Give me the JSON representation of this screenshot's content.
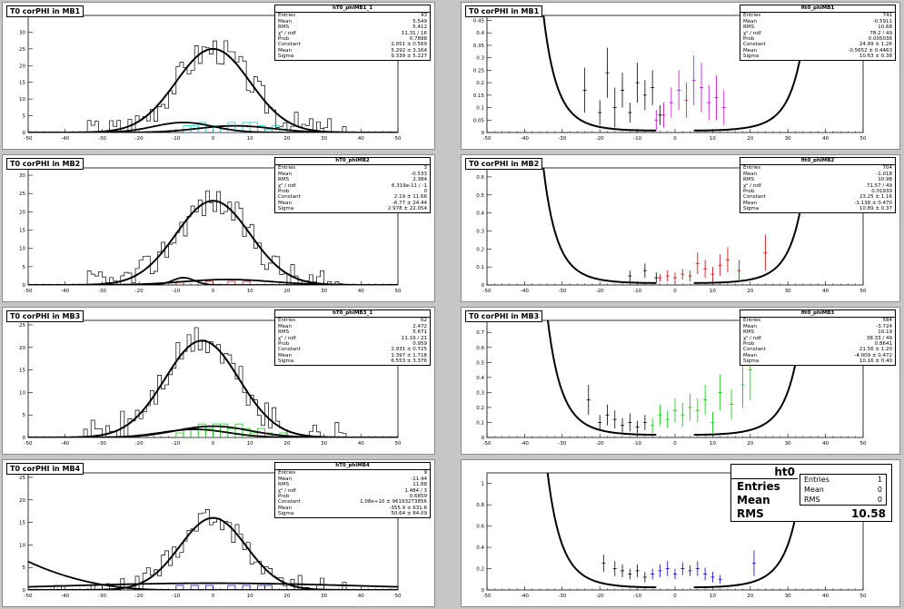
{
  "pads": [
    {
      "id": "l1",
      "title": "T0 corPHI in MB1",
      "xlim": [
        -50,
        50
      ],
      "ylim": [
        0,
        35
      ],
      "yticks": [
        0,
        5,
        10,
        15,
        20,
        25,
        30
      ],
      "stats": {
        "name": "hT0_phiMB1_1",
        "rows": [
          [
            "Entries",
            "43"
          ],
          [
            "Mean",
            "5.549"
          ],
          [
            "RMS",
            "5.412"
          ],
          [
            "χ² / ndf",
            "11.31 / 16"
          ],
          [
            "Prob",
            "0.7898"
          ],
          [
            "Constant",
            "2.051 ± 0.569"
          ],
          [
            "Mean",
            "5.292 ± 3.164"
          ],
          [
            "Sigma",
            "9.339 ± 5.227"
          ]
        ]
      },
      "gauss": {
        "c": 25,
        "m": 0,
        "s": 10
      },
      "small": [
        {
          "c": 3,
          "m": -8,
          "s": 8
        },
        {
          "c": 2,
          "m": 6,
          "s": 10
        }
      ],
      "color": "#00c8c8",
      "colored": [
        [
          -8,
          2
        ],
        [
          -6,
          2
        ],
        [
          -4,
          3
        ],
        [
          0,
          2
        ],
        [
          2,
          1
        ],
        [
          4,
          3
        ],
        [
          6,
          2
        ],
        [
          8,
          3
        ],
        [
          10,
          3
        ],
        [
          12,
          2
        ],
        [
          14,
          1
        ],
        [
          16,
          2
        ],
        [
          18,
          1
        ]
      ]
    },
    {
      "id": "r1",
      "title": "T0 corPHI in MB1",
      "xlim": [
        -50,
        50
      ],
      "ylim": [
        0,
        0.47
      ],
      "yticks": [
        0,
        0.05,
        0.1,
        0.15,
        0.2,
        0.25,
        0.3,
        0.35,
        0.4,
        0.45
      ],
      "stats": {
        "name": "fit0_phiMB1",
        "rows": [
          [
            "Entries",
            "741"
          ],
          [
            "Mean",
            "-0.5911"
          ],
          [
            "RMS",
            "10.68"
          ],
          [
            "χ² / ndf",
            "78.2 / 49"
          ],
          [
            "Prob",
            "0.005036"
          ],
          [
            "Constant",
            "24.99 ± 1.26"
          ],
          [
            "Mean",
            "-0.5652 ± 0.4463"
          ],
          [
            "Sigma",
            "10.63 ± 0.38"
          ]
        ]
      },
      "curveScale": 0.008,
      "color": "#c800c8",
      "black": [
        [
          -24,
          0.17,
          0.09
        ],
        [
          -20,
          0.08,
          0.05
        ],
        [
          -18,
          0.24,
          0.1
        ],
        [
          -16,
          0.1,
          0.08
        ],
        [
          -14,
          0.17,
          0.07
        ],
        [
          -12,
          0.08,
          0.04
        ],
        [
          -10,
          0.2,
          0.08
        ],
        [
          -8,
          0.15,
          0.06
        ],
        [
          -6,
          0.18,
          0.07
        ],
        [
          -4,
          0.07,
          0.04
        ]
      ],
      "colored": [
        [
          -5,
          0.05,
          0.04
        ],
        [
          -3,
          0.07,
          0.05
        ],
        [
          -1,
          0.12,
          0.06
        ],
        [
          1,
          0.17,
          0.08
        ],
        [
          3,
          0.13,
          0.07
        ],
        [
          5,
          0.21,
          0.1
        ],
        [
          7,
          0.18,
          0.1
        ],
        [
          9,
          0.12,
          0.07
        ],
        [
          11,
          0.14,
          0.09
        ],
        [
          13,
          0.1,
          0.07
        ]
      ]
    },
    {
      "id": "l2",
      "title": "T0 corPHI in MB2",
      "xlim": [
        -50,
        50
      ],
      "ylim": [
        0,
        32
      ],
      "yticks": [
        0,
        5,
        10,
        15,
        20,
        25,
        30
      ],
      "stats": {
        "name": "hT0_phiMB2",
        "rows": [
          [
            "Entries",
            "3"
          ],
          [
            "Mean",
            "-0.533"
          ],
          [
            "RMS",
            "2.384"
          ],
          [
            "χ² / ndf",
            "6.319e-11 / -1"
          ],
          [
            "Prob",
            "0"
          ],
          [
            "Constant",
            "2.19 ± 11.66"
          ],
          [
            "Mean",
            "-6.77 ± 24.44"
          ],
          [
            "Sigma",
            "2.978 ± 22.054"
          ]
        ]
      },
      "gauss": {
        "c": 23,
        "m": 0,
        "s": 10
      },
      "small": [
        {
          "c": 2,
          "m": -8,
          "s": 3
        },
        {
          "c": 1.5,
          "m": 4,
          "s": 12
        }
      ],
      "color": "#c80000",
      "colored": [
        [
          -10,
          1
        ],
        [
          -2,
          1
        ],
        [
          4,
          1
        ],
        [
          8,
          1
        ]
      ]
    },
    {
      "id": "r2",
      "title": "T0 corPHI in MB2",
      "xlim": [
        -50,
        50
      ],
      "ylim": [
        0,
        0.65
      ],
      "yticks": [
        0,
        0.1,
        0.2,
        0.3,
        0.4,
        0.5,
        0.6
      ],
      "stats": {
        "name": "fit0_phiMB2",
        "rows": [
          [
            "Entries",
            "704"
          ],
          [
            "Mean",
            "-1.018"
          ],
          [
            "RMS",
            "10.98"
          ],
          [
            "χ² / ndf",
            "71.57 / 49"
          ],
          [
            "Prob",
            "0.01939"
          ],
          [
            "Constant",
            "23.25 ± 1.16"
          ],
          [
            "Mean",
            "-1.138 ± 0.470"
          ],
          [
            "Sigma",
            "10.89 ± 0.37"
          ]
        ]
      },
      "curveScale": 0.011,
      "color": "#c80000",
      "black": [
        [
          -12,
          0.05,
          0.03
        ],
        [
          -8,
          0.08,
          0.04
        ],
        [
          -5,
          0.04,
          0.03
        ]
      ],
      "colored": [
        [
          -4,
          0.04,
          0.02
        ],
        [
          -2,
          0.05,
          0.03
        ],
        [
          0,
          0.04,
          0.03
        ],
        [
          2,
          0.06,
          0.03
        ],
        [
          4,
          0.05,
          0.03
        ],
        [
          6,
          0.12,
          0.06
        ],
        [
          8,
          0.09,
          0.05
        ],
        [
          10,
          0.06,
          0.04
        ],
        [
          12,
          0.11,
          0.06
        ],
        [
          14,
          0.14,
          0.07
        ],
        [
          17,
          0.08,
          0.06
        ],
        [
          24,
          0.18,
          0.1
        ]
      ]
    },
    {
      "id": "l3",
      "title": "T0 corPHI in MB3",
      "xlim": [
        -50,
        50
      ],
      "ylim": [
        0,
        26
      ],
      "yticks": [
        0,
        5,
        10,
        15,
        20,
        25
      ],
      "stats": {
        "name": "hT0_phiMB3_1",
        "rows": [
          [
            "Entries",
            "62"
          ],
          [
            "Mean",
            "2.472"
          ],
          [
            "RMS",
            "5.671"
          ],
          [
            "χ² / ndf",
            "11.19 / 21"
          ],
          [
            "Prob",
            "0.959"
          ],
          [
            "Constant",
            "2.931 ± 0.725"
          ],
          [
            "Mean",
            "1.397 ± 1.718"
          ],
          [
            "Sigma",
            "6.553 ± 3.376"
          ]
        ]
      },
      "gauss": {
        "c": 21.5,
        "m": -3,
        "s": 10
      },
      "small": [
        {
          "c": 2.5,
          "m": 0,
          "s": 10
        },
        {
          "c": 1.8,
          "m": -5,
          "s": 9
        }
      ],
      "color": "#00c800",
      "colored": [
        [
          -10,
          1
        ],
        [
          -8,
          2
        ],
        [
          -6,
          2
        ],
        [
          -4,
          3
        ],
        [
          -2,
          2
        ],
        [
          0,
          3
        ],
        [
          2,
          3
        ],
        [
          4,
          2
        ],
        [
          6,
          3
        ],
        [
          8,
          2
        ],
        [
          10,
          1
        ],
        [
          12,
          2
        ],
        [
          14,
          1
        ],
        [
          18,
          1
        ]
      ]
    },
    {
      "id": "r3",
      "title": "T0 corPHI in MB3",
      "xlim": [
        -50,
        50
      ],
      "ylim": [
        0,
        0.78
      ],
      "yticks": [
        0,
        0.1,
        0.2,
        0.3,
        0.4,
        0.5,
        0.6,
        0.7
      ],
      "stats": {
        "name": "fit0_phiMB3",
        "rows": [
          [
            "Entries",
            "584"
          ],
          [
            "Mean",
            "-3.724"
          ],
          [
            "RMS",
            "10.19"
          ],
          [
            "χ² / ndf",
            "38.33 / 49"
          ],
          [
            "Prob",
            "0.8641"
          ],
          [
            "Constant",
            "21.56 ± 1.20"
          ],
          [
            "Mean",
            "-4.009 ± 0.472"
          ],
          [
            "Sigma",
            "10.16 ± 0.40"
          ]
        ]
      },
      "curveScale": 0.018,
      "color": "#00c800",
      "black": [
        [
          -23,
          0.25,
          0.1
        ],
        [
          -20,
          0.1,
          0.05
        ],
        [
          -18,
          0.15,
          0.07
        ],
        [
          -16,
          0.12,
          0.06
        ],
        [
          -14,
          0.08,
          0.05
        ],
        [
          -12,
          0.1,
          0.06
        ],
        [
          -10,
          0.07,
          0.04
        ],
        [
          -8,
          0.1,
          0.05
        ]
      ],
      "colored": [
        [
          -6,
          0.08,
          0.05
        ],
        [
          -4,
          0.15,
          0.07
        ],
        [
          -2,
          0.12,
          0.06
        ],
        [
          0,
          0.18,
          0.08
        ],
        [
          2,
          0.15,
          0.08
        ],
        [
          4,
          0.2,
          0.09
        ],
        [
          6,
          0.18,
          0.08
        ],
        [
          8,
          0.25,
          0.1
        ],
        [
          10,
          0.1,
          0.07
        ],
        [
          12,
          0.3,
          0.12
        ],
        [
          15,
          0.22,
          0.1
        ],
        [
          18,
          0.35,
          0.15
        ],
        [
          20,
          0.45,
          0.2
        ]
      ]
    },
    {
      "id": "l4",
      "title": "T0 corPHI in MB4",
      "xlim": [
        -50,
        50
      ],
      "ylim": [
        0,
        26
      ],
      "yticks": [
        0,
        5,
        10,
        15,
        20,
        25
      ],
      "stats": {
        "name": "hT0_phiMB4",
        "rows": [
          [
            "Entries",
            "9"
          ],
          [
            "Mean",
            "-11.44"
          ],
          [
            "RMS",
            "11.88"
          ],
          [
            "χ² / ndf",
            "1.484 / 3"
          ],
          [
            "Prob",
            "0.6859"
          ],
          [
            "Constant",
            "1.08e+10 ± 96193273856"
          ],
          [
            "Mean",
            "-355.9 ± 631.6"
          ],
          [
            "Sigma",
            "50.64 ± 84.09"
          ]
        ]
      },
      "gauss": {
        "c": 16,
        "m": 0,
        "s": 9
      },
      "falling": true,
      "small": [
        {
          "c": 1.5,
          "m": 0,
          "s": 40
        }
      ],
      "color": "#0000c8",
      "colored": [
        [
          -10,
          1
        ],
        [
          -6,
          1
        ],
        [
          -2,
          1
        ],
        [
          4,
          1
        ],
        [
          8,
          1
        ],
        [
          12,
          1
        ],
        [
          14,
          1
        ]
      ]
    },
    {
      "id": "r4",
      "title": "",
      "xlim": [
        -50,
        50
      ],
      "ylim": [
        0,
        1.1
      ],
      "yticks": [
        0,
        0.2,
        0.4,
        0.6,
        0.8,
        1
      ],
      "curveScale": 0.025,
      "color": "#0000c8",
      "black": [
        [
          -19,
          0.25,
          0.08
        ],
        [
          -16,
          0.2,
          0.07
        ],
        [
          -14,
          0.18,
          0.06
        ],
        [
          -12,
          0.15,
          0.05
        ],
        [
          -10,
          0.18,
          0.06
        ],
        [
          -8,
          0.12,
          0.05
        ]
      ],
      "colored": [
        [
          -6,
          0.15,
          0.05
        ],
        [
          -4,
          0.18,
          0.06
        ],
        [
          -2,
          0.2,
          0.07
        ],
        [
          0,
          0.15,
          0.05
        ],
        [
          2,
          0.2,
          0.06
        ],
        [
          4,
          0.18,
          0.05
        ],
        [
          6,
          0.2,
          0.07
        ],
        [
          8,
          0.15,
          0.06
        ],
        [
          10,
          0.12,
          0.05
        ],
        [
          12,
          0.1,
          0.04
        ],
        [
          21,
          0.25,
          0.12
        ]
      ]
    }
  ],
  "ht0": {
    "name": "ht0",
    "rows": [
      [
        "Entries",
        "1"
      ],
      [
        "Mean",
        "0"
      ],
      [
        "RMS",
        "0"
      ]
    ],
    "big": [
      [
        "Entries",
        ""
      ],
      [
        "Mean",
        ""
      ],
      [
        "RMS",
        "10.58"
      ]
    ]
  },
  "chart_data": [
    {
      "type": "bar",
      "title": "T0 corPHI in MB1",
      "xlim": [
        -50,
        50
      ],
      "ylim": [
        0,
        35
      ]
    },
    {
      "type": "scatter",
      "title": "T0 corPHI in MB1",
      "xlim": [
        -50,
        50
      ],
      "ylim": [
        0,
        0.47
      ]
    },
    {
      "type": "bar",
      "title": "T0 corPHI in MB2",
      "xlim": [
        -50,
        50
      ],
      "ylim": [
        0,
        32
      ]
    },
    {
      "type": "scatter",
      "title": "T0 corPHI in MB2",
      "xlim": [
        -50,
        50
      ],
      "ylim": [
        0,
        0.65
      ]
    },
    {
      "type": "bar",
      "title": "T0 corPHI in MB3",
      "xlim": [
        -50,
        50
      ],
      "ylim": [
        0,
        26
      ]
    },
    {
      "type": "scatter",
      "title": "T0 corPHI in MB3",
      "xlim": [
        -50,
        50
      ],
      "ylim": [
        0,
        0.78
      ]
    },
    {
      "type": "bar",
      "title": "T0 corPHI in MB4",
      "xlim": [
        -50,
        50
      ],
      "ylim": [
        0,
        26
      ]
    },
    {
      "type": "scatter",
      "title": "ht0",
      "xlim": [
        -50,
        50
      ],
      "ylim": [
        0,
        1.1
      ]
    }
  ]
}
